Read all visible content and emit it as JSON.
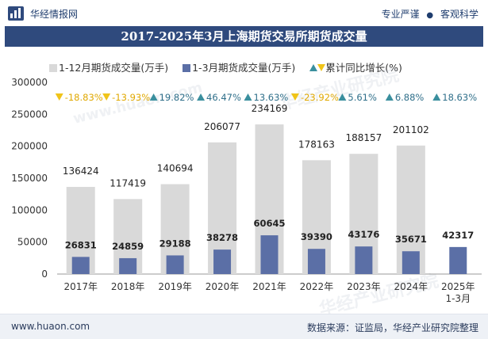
{
  "header": {
    "brand": "华经情报网",
    "tagline_1": "专业严谨",
    "tagline_2": "客观科学"
  },
  "footer": {
    "website": "www.huaon.com",
    "source": "数据来源：证监局，华经产业研究院整理"
  },
  "colors": {
    "annual_bar": "#d9d9d9",
    "q1_bar": "#5b6fa6",
    "growth_up": "#3a8f9e",
    "growth_down": "#f0c419",
    "title_bg": "#2f4a7d"
  },
  "chart_data": {
    "type": "bar",
    "title": "2017-2025年3月上海期货交易所期货成交量",
    "categories": [
      "2017年",
      "2018年",
      "2019年",
      "2020年",
      "2021年",
      "2022年",
      "2023年",
      "2024年",
      "2025年\n1-3月"
    ],
    "series": [
      {
        "name": "1-12月期货成交量(万手)",
        "values": [
          136424,
          117419,
          140694,
          206077,
          234169,
          178163,
          188157,
          201102,
          null
        ]
      },
      {
        "name": "1-3月期货成交量(万手)",
        "values": [
          26831,
          24859,
          29188,
          38278,
          60645,
          39390,
          43176,
          35671,
          42317
        ]
      },
      {
        "name": "累计同比增长(%)",
        "values": [
          "-18.83%",
          "-13.93%",
          "19.82%",
          "46.47%",
          "13.63%",
          "-23.92%",
          "5.61%",
          "6.88%",
          "18.63%"
        ]
      }
    ],
    "growth_direction": [
      "down",
      "down",
      "up",
      "up",
      "up",
      "down",
      "up",
      "up",
      "up"
    ],
    "ylim": [
      0,
      300000
    ],
    "yticks": [
      "0",
      "50000",
      "100000",
      "150000",
      "200000",
      "250000",
      "300000"
    ],
    "grid": false,
    "legend_position": "top"
  }
}
